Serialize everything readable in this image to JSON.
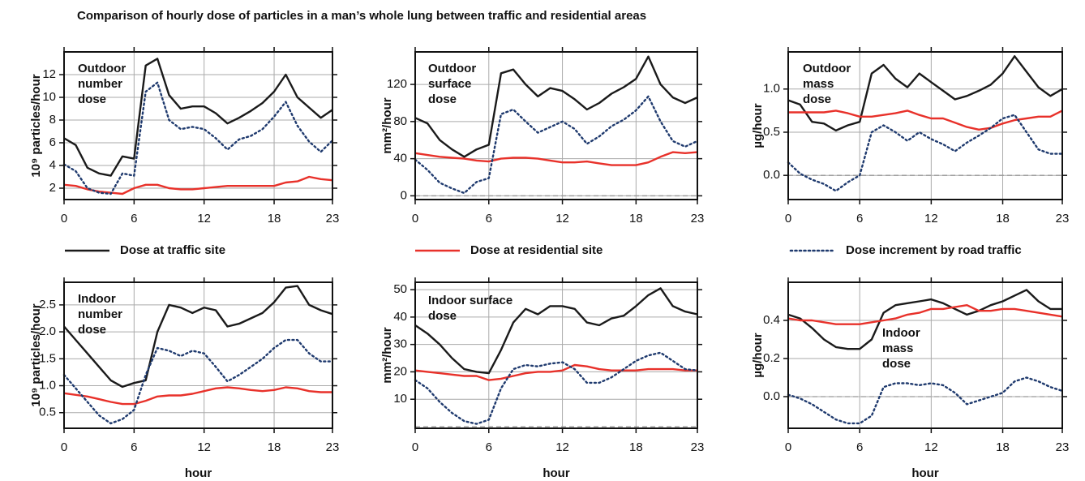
{
  "title": "Comparison of hourly dose of particles in a man’s whole lung between traffic and residential areas",
  "chart_data": [
    {
      "type": "line",
      "ylabel": "10⁹ particles/hour",
      "annotation": [
        "Outdoor",
        "number",
        "dose"
      ],
      "x": [
        0,
        1,
        2,
        3,
        4,
        5,
        6,
        7,
        8,
        9,
        10,
        11,
        12,
        13,
        14,
        15,
        16,
        17,
        18,
        19,
        20,
        21,
        22,
        23
      ],
      "xlim": [
        0,
        23
      ],
      "xticks": [
        0,
        6,
        12,
        18,
        23
      ],
      "ylim": [
        1,
        14
      ],
      "yticks": [
        2,
        4,
        6,
        8,
        10,
        12
      ],
      "grid": true,
      "series": [
        {
          "name": "Dose at traffic site",
          "color": "#1a1a1a",
          "style": "solid",
          "values": [
            6.4,
            5.8,
            3.8,
            3.3,
            3.1,
            4.8,
            4.6,
            12.8,
            13.4,
            10.2,
            9.0,
            9.2,
            9.2,
            8.6,
            7.7,
            8.2,
            8.8,
            9.5,
            10.5,
            12.0,
            10.0,
            9.1,
            8.2,
            8.9
          ]
        },
        {
          "name": "Dose at residential site",
          "color": "#e8312a",
          "style": "solid",
          "values": [
            2.3,
            2.2,
            1.9,
            1.7,
            1.6,
            1.5,
            2.0,
            2.3,
            2.3,
            2.0,
            1.9,
            1.9,
            2.0,
            2.1,
            2.2,
            2.2,
            2.2,
            2.2,
            2.2,
            2.5,
            2.6,
            3.0,
            2.8,
            2.7
          ]
        },
        {
          "name": "Dose increment by road traffic",
          "color": "#1f3a6e",
          "style": "dotted",
          "values": [
            4.1,
            3.5,
            2.0,
            1.6,
            1.5,
            3.3,
            3.1,
            10.5,
            11.3,
            8.0,
            7.2,
            7.4,
            7.2,
            6.4,
            5.4,
            6.3,
            6.6,
            7.2,
            8.3,
            9.6,
            7.5,
            6.1,
            5.2,
            6.2
          ]
        }
      ]
    },
    {
      "type": "line",
      "ylabel": "mm²/hour",
      "annotation": [
        "Outdoor",
        "surface",
        "dose"
      ],
      "x": [
        0,
        1,
        2,
        3,
        4,
        5,
        6,
        7,
        8,
        9,
        10,
        11,
        12,
        13,
        14,
        15,
        16,
        17,
        18,
        19,
        20,
        21,
        22,
        23
      ],
      "xlim": [
        0,
        23
      ],
      "xticks": [
        0,
        6,
        12,
        18,
        23
      ],
      "ylim": [
        -4,
        155
      ],
      "yticks": [
        0,
        40,
        80,
        120
      ],
      "grid": true,
      "hline": 0,
      "series": [
        {
          "color": "#1a1a1a",
          "style": "solid",
          "values": [
            84,
            78,
            60,
            50,
            42,
            50,
            55,
            132,
            136,
            120,
            107,
            116,
            113,
            104,
            93,
            100,
            110,
            117,
            126,
            150,
            120,
            106,
            100,
            106
          ]
        },
        {
          "color": "#e8312a",
          "style": "solid",
          "values": [
            46,
            44,
            42,
            41,
            40,
            38,
            37,
            40,
            41,
            41,
            40,
            38,
            36,
            36,
            37,
            35,
            33,
            33,
            33,
            36,
            42,
            47,
            46,
            47
          ]
        },
        {
          "color": "#1f3a6e",
          "style": "dotted",
          "values": [
            39,
            28,
            14,
            8,
            3,
            15,
            19,
            88,
            93,
            80,
            68,
            74,
            80,
            72,
            56,
            64,
            75,
            82,
            92,
            107,
            80,
            59,
            53,
            59
          ]
        }
      ]
    },
    {
      "type": "line",
      "ylabel": "µg/hour",
      "annotation": [
        "Outdoor",
        "mass",
        "dose"
      ],
      "x": [
        0,
        1,
        2,
        3,
        4,
        5,
        6,
        7,
        8,
        9,
        10,
        11,
        12,
        13,
        14,
        15,
        16,
        17,
        18,
        19,
        20,
        21,
        22,
        23
      ],
      "xlim": [
        0,
        23
      ],
      "xticks": [
        0,
        6,
        12,
        18,
        23
      ],
      "ylim": [
        -0.28,
        1.43
      ],
      "yticks": [
        {
          "value": 0,
          "label": "0.0"
        },
        0.5,
        {
          "value": 1,
          "label": "1.0"
        }
      ],
      "grid": true,
      "hline": 0,
      "series": [
        {
          "color": "#1a1a1a",
          "style": "solid",
          "values": [
            0.87,
            0.82,
            0.62,
            0.6,
            0.52,
            0.58,
            0.62,
            1.18,
            1.28,
            1.12,
            1.02,
            1.18,
            1.08,
            0.98,
            0.88,
            0.92,
            0.98,
            1.05,
            1.18,
            1.38,
            1.2,
            1.02,
            0.92,
            1.0
          ]
        },
        {
          "color": "#e8312a",
          "style": "solid",
          "values": [
            0.73,
            0.73,
            0.73,
            0.73,
            0.75,
            0.72,
            0.68,
            0.68,
            0.7,
            0.72,
            0.75,
            0.7,
            0.66,
            0.66,
            0.61,
            0.56,
            0.53,
            0.55,
            0.6,
            0.64,
            0.66,
            0.68,
            0.68,
            0.75
          ]
        },
        {
          "color": "#1f3a6e",
          "style": "dotted",
          "values": [
            0.15,
            0.02,
            -0.05,
            -0.1,
            -0.18,
            -0.08,
            0,
            0.5,
            0.58,
            0.5,
            0.4,
            0.5,
            0.42,
            0.36,
            0.28,
            0.38,
            0.46,
            0.55,
            0.66,
            0.7,
            0.5,
            0.3,
            0.25,
            0.25
          ]
        }
      ]
    },
    {
      "type": "line",
      "ylabel": "10⁹ particles/hour",
      "xlabel": "hour",
      "annotation": [
        "Indoor",
        "number",
        "dose"
      ],
      "x": [
        0,
        1,
        2,
        3,
        4,
        5,
        6,
        7,
        8,
        9,
        10,
        11,
        12,
        13,
        14,
        15,
        16,
        17,
        18,
        19,
        20,
        21,
        22,
        23
      ],
      "xlim": [
        0,
        23
      ],
      "xticks": [
        0,
        6,
        12,
        18,
        23
      ],
      "ylim": [
        0.21,
        2.92
      ],
      "yticks": [
        0.5,
        {
          "value": 1,
          "label": "1.0"
        },
        1.5,
        {
          "value": 2,
          "label": "2.0"
        },
        2.5
      ],
      "grid": true,
      "series": [
        {
          "color": "#1a1a1a",
          "style": "solid",
          "values": [
            2.1,
            1.85,
            1.6,
            1.35,
            1.1,
            0.98,
            1.05,
            1.1,
            2.0,
            2.5,
            2.45,
            2.35,
            2.45,
            2.4,
            2.1,
            2.15,
            2.25,
            2.35,
            2.55,
            2.82,
            2.85,
            2.5,
            2.4,
            2.33
          ]
        },
        {
          "color": "#e8312a",
          "style": "solid",
          "values": [
            0.86,
            0.83,
            0.8,
            0.75,
            0.7,
            0.66,
            0.66,
            0.72,
            0.8,
            0.82,
            0.82,
            0.85,
            0.9,
            0.95,
            0.97,
            0.95,
            0.92,
            0.9,
            0.92,
            0.97,
            0.95,
            0.9,
            0.88,
            0.88
          ]
        },
        {
          "color": "#1f3a6e",
          "style": "dotted",
          "values": [
            1.2,
            0.95,
            0.7,
            0.45,
            0.3,
            0.38,
            0.55,
            1.2,
            1.7,
            1.65,
            1.55,
            1.65,
            1.6,
            1.35,
            1.08,
            1.2,
            1.35,
            1.5,
            1.7,
            1.85,
            1.85,
            1.6,
            1.45,
            1.45
          ]
        }
      ]
    },
    {
      "type": "line",
      "ylabel": "mm²/hour",
      "xlabel": "hour",
      "annotation": [
        "Indoor surface",
        "dose"
      ],
      "x": [
        0,
        1,
        2,
        3,
        4,
        5,
        6,
        7,
        8,
        9,
        10,
        11,
        12,
        13,
        14,
        15,
        16,
        17,
        18,
        19,
        20,
        21,
        22,
        23
      ],
      "xlim": [
        0,
        23
      ],
      "xticks": [
        0,
        6,
        12,
        18,
        23
      ],
      "ylim": [
        -0.6,
        52.7
      ],
      "yticks": [
        10,
        20,
        30,
        40,
        50
      ],
      "grid": true,
      "hline": 0,
      "series": [
        {
          "color": "#1a1a1a",
          "style": "solid",
          "values": [
            37,
            34,
            30,
            25,
            21,
            20,
            19.5,
            28,
            38,
            43,
            41,
            44,
            44,
            43,
            38,
            37,
            39.5,
            40.5,
            44,
            48,
            50.5,
            44,
            42,
            41
          ]
        },
        {
          "color": "#e8312a",
          "style": "solid",
          "values": [
            20.5,
            20,
            19.5,
            19,
            18.5,
            18.5,
            17,
            17.5,
            18.5,
            19.5,
            20,
            20,
            20.5,
            22.5,
            22,
            21,
            20.5,
            20.5,
            20.5,
            21,
            21,
            21,
            20.5,
            20.5
          ]
        },
        {
          "color": "#1f3a6e",
          "style": "dotted",
          "values": [
            17,
            14,
            9,
            5,
            2,
            1,
            2.5,
            14,
            21,
            22.5,
            22,
            23,
            23.5,
            21,
            16,
            16,
            18,
            21,
            24,
            26,
            27,
            24,
            21,
            20.5
          ]
        }
      ]
    },
    {
      "type": "line",
      "ylabel": "µg/hour",
      "xlabel": "hour",
      "annotation": [
        "Indoor",
        "mass",
        "dose"
      ],
      "x": [
        0,
        1,
        2,
        3,
        4,
        5,
        6,
        7,
        8,
        9,
        10,
        11,
        12,
        13,
        14,
        15,
        16,
        17,
        18,
        19,
        20,
        21,
        22,
        23
      ],
      "xlim": [
        0,
        23
      ],
      "xticks": [
        0,
        6,
        12,
        18,
        23
      ],
      "ylim": [
        -0.166,
        0.6
      ],
      "yticks": [
        {
          "value": 0,
          "label": "0.0"
        },
        0.2,
        0.4
      ],
      "grid": true,
      "hline": 0,
      "series": [
        {
          "color": "#1a1a1a",
          "style": "solid",
          "values": [
            0.43,
            0.41,
            0.36,
            0.3,
            0.26,
            0.25,
            0.25,
            0.3,
            0.44,
            0.48,
            0.49,
            0.5,
            0.51,
            0.49,
            0.46,
            0.43,
            0.45,
            0.48,
            0.5,
            0.53,
            0.56,
            0.5,
            0.46,
            0.46
          ]
        },
        {
          "color": "#e8312a",
          "style": "solid",
          "values": [
            0.41,
            0.4,
            0.4,
            0.39,
            0.38,
            0.38,
            0.38,
            0.39,
            0.4,
            0.41,
            0.43,
            0.44,
            0.46,
            0.46,
            0.47,
            0.48,
            0.45,
            0.45,
            0.46,
            0.46,
            0.45,
            0.44,
            0.43,
            0.42
          ]
        },
        {
          "color": "#1f3a6e",
          "style": "dotted",
          "values": [
            0.01,
            -0.01,
            -0.04,
            -0.08,
            -0.12,
            -0.14,
            -0.14,
            -0.1,
            0.05,
            0.07,
            0.07,
            0.06,
            0.07,
            0.06,
            0.02,
            -0.04,
            -0.02,
            0,
            0.02,
            0.08,
            0.1,
            0.08,
            0.05,
            0.03
          ]
        }
      ]
    }
  ]
}
